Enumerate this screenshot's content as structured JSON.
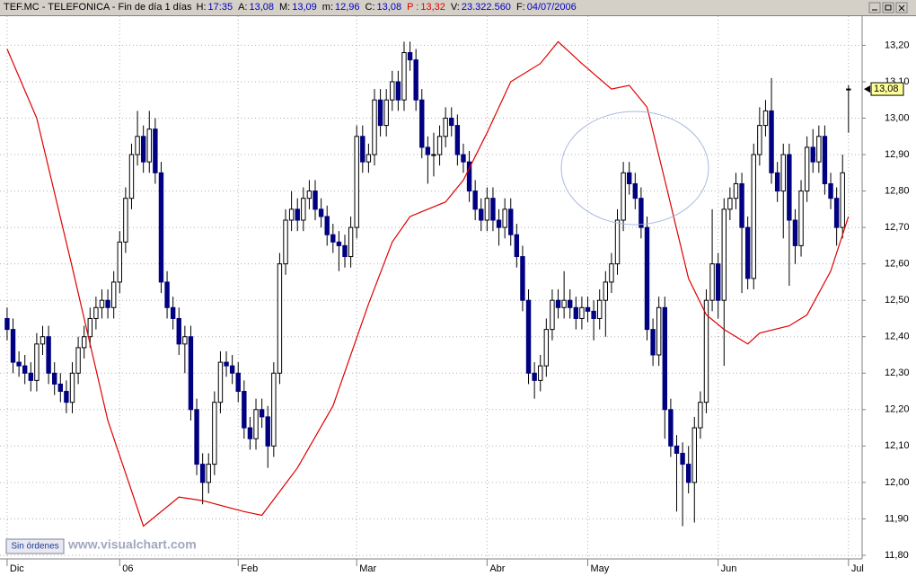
{
  "header": {
    "symbol": "TEF.MC - TELEFONICA - Fin de día 1 días",
    "fields": [
      {
        "label": "H:",
        "value": "17:35"
      },
      {
        "label": "A:",
        "value": "13,08"
      },
      {
        "label": "M:",
        "value": "13,09"
      },
      {
        "label": "m:",
        "value": "12,96"
      },
      {
        "label": "C:",
        "value": "13,08"
      },
      {
        "label": "P :",
        "value": "13,32"
      },
      {
        "label": "V:",
        "value": "23.322.560"
      },
      {
        "label": "F:",
        "value": "04/07/2006"
      }
    ]
  },
  "footer": {
    "button": "Sin órdenes",
    "watermark": "www.visualchart.com"
  },
  "chart_data": {
    "type": "candlestick",
    "up_color": "#ffffff",
    "down_color": "#000080",
    "ohlc": [
      [
        12.45,
        12.48,
        12.39,
        12.42
      ],
      [
        12.42,
        12.45,
        12.3,
        12.33
      ],
      [
        12.33,
        12.36,
        12.29,
        12.32
      ],
      [
        12.32,
        12.35,
        12.27,
        12.3
      ],
      [
        12.3,
        12.33,
        12.25,
        12.28
      ],
      [
        12.28,
        12.41,
        12.25,
        12.38
      ],
      [
        12.38,
        12.43,
        12.35,
        12.4
      ],
      [
        12.4,
        12.43,
        12.27,
        12.3
      ],
      [
        12.3,
        12.33,
        12.24,
        12.27
      ],
      [
        12.27,
        12.3,
        12.22,
        12.25
      ],
      [
        12.25,
        12.28,
        12.19,
        12.22
      ],
      [
        12.22,
        12.33,
        12.19,
        12.3
      ],
      [
        12.3,
        12.4,
        12.27,
        12.37
      ],
      [
        12.37,
        12.43,
        12.34,
        12.4
      ],
      [
        12.4,
        12.48,
        12.37,
        12.45
      ],
      [
        12.45,
        12.51,
        12.42,
        12.48
      ],
      [
        12.48,
        12.53,
        12.45,
        12.5
      ],
      [
        12.5,
        12.53,
        12.45,
        12.48
      ],
      [
        12.48,
        12.58,
        12.45,
        12.55
      ],
      [
        12.55,
        12.69,
        12.52,
        12.66
      ],
      [
        12.66,
        12.81,
        12.63,
        12.78
      ],
      [
        12.78,
        12.93,
        12.75,
        12.9
      ],
      [
        12.9,
        13.02,
        12.87,
        12.95
      ],
      [
        12.95,
        12.98,
        12.85,
        12.88
      ],
      [
        12.88,
        13.02,
        12.85,
        12.97
      ],
      [
        12.97,
        13.0,
        12.82,
        12.85
      ],
      [
        12.85,
        12.88,
        12.52,
        12.55
      ],
      [
        12.55,
        12.58,
        12.45,
        12.48
      ],
      [
        12.48,
        12.51,
        12.42,
        12.45
      ],
      [
        12.45,
        12.48,
        12.35,
        12.38
      ],
      [
        12.38,
        12.43,
        12.3,
        12.4
      ],
      [
        12.4,
        12.43,
        12.17,
        12.2
      ],
      [
        12.2,
        12.23,
        12.02,
        12.05
      ],
      [
        12.05,
        12.08,
        11.94,
        12.0
      ],
      [
        12.0,
        12.08,
        11.97,
        12.05
      ],
      [
        12.05,
        12.25,
        12.02,
        12.22
      ],
      [
        12.22,
        12.36,
        12.19,
        12.33
      ],
      [
        12.33,
        12.36,
        12.29,
        12.32
      ],
      [
        12.32,
        12.35,
        12.27,
        12.3
      ],
      [
        12.3,
        12.33,
        12.22,
        12.25
      ],
      [
        12.25,
        12.28,
        12.12,
        12.15
      ],
      [
        12.15,
        12.18,
        12.09,
        12.12
      ],
      [
        12.12,
        12.23,
        12.09,
        12.2
      ],
      [
        12.2,
        12.23,
        12.15,
        12.18
      ],
      [
        12.18,
        12.21,
        12.04,
        12.1
      ],
      [
        12.1,
        12.33,
        12.07,
        12.3
      ],
      [
        12.3,
        12.63,
        12.27,
        12.6
      ],
      [
        12.6,
        12.75,
        12.57,
        12.72
      ],
      [
        12.72,
        12.8,
        12.69,
        12.75
      ],
      [
        12.75,
        12.78,
        12.69,
        12.72
      ],
      [
        12.72,
        12.81,
        12.69,
        12.78
      ],
      [
        12.78,
        12.83,
        12.75,
        12.8
      ],
      [
        12.8,
        12.83,
        12.72,
        12.75
      ],
      [
        12.75,
        12.78,
        12.7,
        12.73
      ],
      [
        12.73,
        12.76,
        12.65,
        12.68
      ],
      [
        12.68,
        12.71,
        12.63,
        12.66
      ],
      [
        12.66,
        12.69,
        12.58,
        12.65
      ],
      [
        12.65,
        12.68,
        12.59,
        12.62
      ],
      [
        12.62,
        12.73,
        12.59,
        12.7
      ],
      [
        12.7,
        12.98,
        12.67,
        12.95
      ],
      [
        12.95,
        12.98,
        12.85,
        12.88
      ],
      [
        12.88,
        12.93,
        12.85,
        12.9
      ],
      [
        12.9,
        13.08,
        12.87,
        13.05
      ],
      [
        13.05,
        13.08,
        12.95,
        12.98
      ],
      [
        12.98,
        13.08,
        12.95,
        13.05
      ],
      [
        13.05,
        13.13,
        13.02,
        13.1
      ],
      [
        13.1,
        13.13,
        13.02,
        13.05
      ],
      [
        13.05,
        13.21,
        13.02,
        13.18
      ],
      [
        13.18,
        13.21,
        13.13,
        13.16
      ],
      [
        13.16,
        13.19,
        13.02,
        13.05
      ],
      [
        13.05,
        13.08,
        12.89,
        12.92
      ],
      [
        12.92,
        12.95,
        12.82,
        12.9
      ],
      [
        12.9,
        12.96,
        12.84,
        12.9
      ],
      [
        12.9,
        12.98,
        12.87,
        12.95
      ],
      [
        12.95,
        13.03,
        12.92,
        13.0
      ],
      [
        13.0,
        13.03,
        12.95,
        12.98
      ],
      [
        12.98,
        13.01,
        12.87,
        12.9
      ],
      [
        12.9,
        12.93,
        12.85,
        12.88
      ],
      [
        12.88,
        12.91,
        12.77,
        12.8
      ],
      [
        12.8,
        12.83,
        12.72,
        12.75
      ],
      [
        12.75,
        12.78,
        12.69,
        12.72
      ],
      [
        12.72,
        12.81,
        12.69,
        12.78
      ],
      [
        12.78,
        12.81,
        12.69,
        12.72
      ],
      [
        12.72,
        12.75,
        12.65,
        12.7
      ],
      [
        12.7,
        12.78,
        12.67,
        12.75
      ],
      [
        12.75,
        12.78,
        12.65,
        12.68
      ],
      [
        12.68,
        12.71,
        12.59,
        12.62
      ],
      [
        12.62,
        12.65,
        12.47,
        12.5
      ],
      [
        12.5,
        12.53,
        12.27,
        12.3
      ],
      [
        12.3,
        12.33,
        12.23,
        12.28
      ],
      [
        12.28,
        12.35,
        12.25,
        12.32
      ],
      [
        12.32,
        12.45,
        12.29,
        12.42
      ],
      [
        12.42,
        12.53,
        12.39,
        12.5
      ],
      [
        12.5,
        12.53,
        12.45,
        12.48
      ],
      [
        12.48,
        12.58,
        12.45,
        12.5
      ],
      [
        12.5,
        12.53,
        12.45,
        12.48
      ],
      [
        12.48,
        12.51,
        12.42,
        12.45
      ],
      [
        12.45,
        12.51,
        12.42,
        12.48
      ],
      [
        12.48,
        12.51,
        12.44,
        12.47
      ],
      [
        12.47,
        12.5,
        12.39,
        12.45
      ],
      [
        12.45,
        12.53,
        12.42,
        12.5
      ],
      [
        12.5,
        12.58,
        12.4,
        12.55
      ],
      [
        12.55,
        12.63,
        12.52,
        12.6
      ],
      [
        12.6,
        12.75,
        12.57,
        12.72
      ],
      [
        12.72,
        12.88,
        12.69,
        12.85
      ],
      [
        12.85,
        12.88,
        12.79,
        12.82
      ],
      [
        12.82,
        12.85,
        12.75,
        12.78
      ],
      [
        12.78,
        12.81,
        12.67,
        12.7
      ],
      [
        12.7,
        12.73,
        12.39,
        12.42
      ],
      [
        12.42,
        12.45,
        12.32,
        12.35
      ],
      [
        12.35,
        12.51,
        12.32,
        12.48
      ],
      [
        12.48,
        12.51,
        12.12,
        12.2
      ],
      [
        12.2,
        12.23,
        12.07,
        12.1
      ],
      [
        12.1,
        12.13,
        11.92,
        12.08
      ],
      [
        12.08,
        12.11,
        11.88,
        12.05
      ],
      [
        12.05,
        12.1,
        11.97,
        12.0
      ],
      [
        12.0,
        12.18,
        11.89,
        12.15
      ],
      [
        12.15,
        12.25,
        12.12,
        12.22
      ],
      [
        12.22,
        12.53,
        12.19,
        12.5
      ],
      [
        12.5,
        12.75,
        12.47,
        12.6
      ],
      [
        12.6,
        12.63,
        12.45,
        12.5
      ],
      [
        12.5,
        12.78,
        12.32,
        12.75
      ],
      [
        12.75,
        12.81,
        12.72,
        12.78
      ],
      [
        12.78,
        12.85,
        12.75,
        12.82
      ],
      [
        12.82,
        12.85,
        12.52,
        12.7
      ],
      [
        12.7,
        12.73,
        12.53,
        12.56
      ],
      [
        12.56,
        12.93,
        12.53,
        12.9
      ],
      [
        12.9,
        13.03,
        12.87,
        12.98
      ],
      [
        12.98,
        13.05,
        12.95,
        13.02
      ],
      [
        13.02,
        13.11,
        12.82,
        12.85
      ],
      [
        12.85,
        12.88,
        12.77,
        12.8
      ],
      [
        12.8,
        12.93,
        12.67,
        12.9
      ],
      [
        12.9,
        12.93,
        12.54,
        12.72
      ],
      [
        12.72,
        12.75,
        12.6,
        12.65
      ],
      [
        12.65,
        12.83,
        12.62,
        12.8
      ],
      [
        12.8,
        12.95,
        12.77,
        12.92
      ],
      [
        12.92,
        12.97,
        12.85,
        12.88
      ],
      [
        12.88,
        12.98,
        12.85,
        12.95
      ],
      [
        12.95,
        12.98,
        12.79,
        12.82
      ],
      [
        12.82,
        12.85,
        12.75,
        12.78
      ],
      [
        12.78,
        12.81,
        12.65,
        12.7
      ],
      [
        12.7,
        12.9,
        12.67,
        12.85
      ],
      [
        13.08,
        13.09,
        12.96,
        13.08
      ]
    ],
    "series": [
      {
        "color": "#e00000",
        "x": [
          0,
          5,
          11,
          17,
          23,
          29,
          33,
          40,
          43,
          49,
          55,
          61,
          65,
          68,
          74,
          77,
          81,
          85,
          90,
          93,
          97,
          102,
          105,
          108,
          111,
          115,
          118,
          121,
          125,
          127,
          132,
          135,
          139,
          142
        ],
        "values": [
          13.19,
          13.0,
          12.59,
          12.17,
          11.88,
          11.96,
          11.95,
          11.92,
          11.91,
          12.04,
          12.21,
          12.49,
          12.66,
          12.73,
          12.77,
          12.83,
          12.96,
          13.1,
          13.15,
          13.21,
          13.15,
          13.08,
          13.09,
          13.03,
          12.83,
          12.56,
          12.46,
          12.42,
          12.38,
          12.41,
          12.43,
          12.46,
          12.58,
          12.73
        ]
      }
    ],
    "last": {
      "value": 13.08,
      "label": "13,08"
    },
    "xlim": [
      -1.2,
      144.3
    ],
    "xticks": [
      {
        "value": 0,
        "label": "Dic"
      },
      {
        "value": 19,
        "label": "06"
      },
      {
        "value": 39,
        "label": "Feb"
      },
      {
        "value": 59,
        "label": "Mar"
      },
      {
        "value": 81,
        "label": "Abr"
      },
      {
        "value": 98,
        "label": "May"
      },
      {
        "value": 120,
        "label": "Jun"
      },
      {
        "value": 142,
        "label": "Jul"
      }
    ],
    "ylim": [
      11.79,
      13.28
    ],
    "yticks": [
      {
        "value": 11.8,
        "label": "11,80"
      },
      {
        "value": 11.9,
        "label": "11,90"
      },
      {
        "value": 12.0,
        "label": "12,00"
      },
      {
        "value": 12.1,
        "label": "12,10"
      },
      {
        "value": 12.2,
        "label": "12,20"
      },
      {
        "value": 12.3,
        "label": "12,30"
      },
      {
        "value": 12.4,
        "label": "12,40"
      },
      {
        "value": 12.5,
        "label": "12,50"
      },
      {
        "value": 12.6,
        "label": "12,60"
      },
      {
        "value": 12.7,
        "label": "12,70"
      },
      {
        "value": 12.8,
        "label": "12,80"
      },
      {
        "value": 12.9,
        "label": "12,90"
      },
      {
        "value": 13.0,
        "label": "13,00"
      },
      {
        "value": 13.1,
        "label": "13,10"
      },
      {
        "value": 13.2,
        "label": "13,20"
      }
    ],
    "grid": true
  }
}
